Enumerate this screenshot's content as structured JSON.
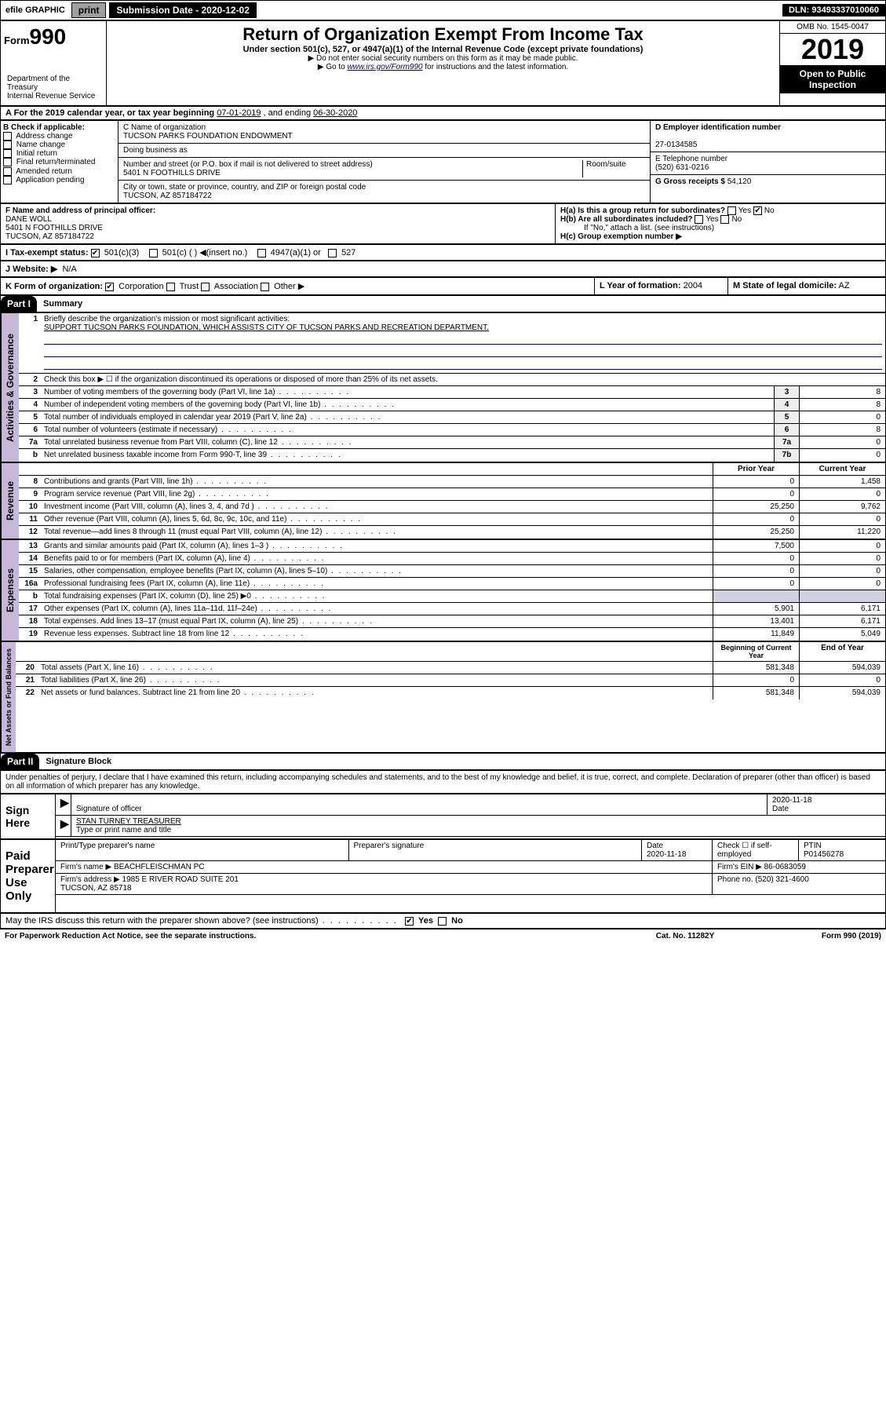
{
  "topbar": {
    "efile": "efile GRAPHIC",
    "print": "print",
    "sub_label": "Submission Date - 2020-12-02",
    "dln": "DLN: 93493337010060"
  },
  "header": {
    "form_small": "Form",
    "form_num": "990",
    "title": "Return of Organization Exempt From Income Tax",
    "sub": "Under section 501(c), 527, or 4947(a)(1) of the Internal Revenue Code (except private foundations)",
    "note1": "▶ Do not enter social security numbers on this form as it may be made public.",
    "note2_pre": "▶ Go to ",
    "note2_link": "www.irs.gov/Form990",
    "note2_post": " for instructions and the latest information.",
    "omb": "OMB No. 1545-0047",
    "year": "2019",
    "ribbon": "Open to Public Inspection",
    "dept": "Department of the Treasury\nInternal Revenue Service"
  },
  "a": {
    "text_pre": "A For the 2019 calendar year, or tax year beginning ",
    "begin": "07-01-2019",
    "mid": " , and ending ",
    "end": "06-30-2020"
  },
  "b": {
    "label": "B Check if applicable:",
    "items": [
      "Address change",
      "Name change",
      "Initial return",
      "Final return/terminated",
      "Amended return",
      "Application pending"
    ]
  },
  "c": {
    "name_label": "C Name of organization",
    "name": "TUCSON PARKS FOUNDATION ENDOWMENT",
    "dba_label": "Doing business as",
    "addr_label": "Number and street (or P.O. box if mail is not delivered to street address)",
    "room_label": "Room/suite",
    "addr": "5401 N FOOTHILLS DRIVE",
    "city_label": "City or town, state or province, country, and ZIP or foreign postal code",
    "city": "TUCSON, AZ  857184722"
  },
  "d": {
    "label": "D Employer identification number",
    "val": "27-0134585"
  },
  "e": {
    "label": "E Telephone number",
    "val": "(520) 631-0216"
  },
  "g": {
    "label": "G Gross receipts $",
    "val": "54,120"
  },
  "f": {
    "label": "F Name and address of principal officer:",
    "name": "DANE WOLL",
    "addr1": "5401 N FOOTHILLS DRIVE",
    "addr2": "TUCSON, AZ  857184722"
  },
  "h": {
    "a": "H(a)  Is this a group return for subordinates?",
    "b": "H(b)  Are all subordinates included?",
    "b_note": "If \"No,\" attach a list. (see instructions)",
    "c": "H(c)  Group exemption number ▶",
    "yes": "Yes",
    "no": "No"
  },
  "i": {
    "label": "I  Tax-exempt status:",
    "o1": "501(c)(3)",
    "o2": "501(c) (   ) ◀(insert no.)",
    "o3": "4947(a)(1) or",
    "o4": "527"
  },
  "j": {
    "label": "J  Website: ▶",
    "val": "N/A"
  },
  "k": {
    "label": "K Form of organization:",
    "o1": "Corporation",
    "o2": "Trust",
    "o3": "Association",
    "o4": "Other ▶"
  },
  "l": {
    "label": "L Year of formation:",
    "val": "2004"
  },
  "m": {
    "label": "M State of legal domicile:",
    "val": "AZ"
  },
  "part1": {
    "hdr": "Part I",
    "title": "Summary"
  },
  "summary": {
    "l1": "Briefly describe the organization's mission or most significant activities:",
    "l1v": "SUPPORT TUCSON PARKS FOUNDATION, WHICH ASSISTS CITY OF TUCSON PARKS AND RECREATION DEPARTMENT.",
    "l2": "Check this box ▶ ☐  if the organization discontinued its operations or disposed of more than 25% of its net assets.",
    "rows": [
      {
        "n": "3",
        "t": "Number of voting members of the governing body (Part VI, line 1a)",
        "box": "3",
        "v": "8"
      },
      {
        "n": "4",
        "t": "Number of independent voting members of the governing body (Part VI, line 1b)",
        "box": "4",
        "v": "8"
      },
      {
        "n": "5",
        "t": "Total number of individuals employed in calendar year 2019 (Part V, line 2a)",
        "box": "5",
        "v": "0"
      },
      {
        "n": "6",
        "t": "Total number of volunteers (estimate if necessary)",
        "box": "6",
        "v": "8"
      },
      {
        "n": "7a",
        "t": "Total unrelated business revenue from Part VIII, column (C), line 12",
        "box": "7a",
        "v": "0"
      },
      {
        "n": "b",
        "t": "Net unrelated business taxable income from Form 990-T, line 39",
        "box": "7b",
        "v": "0"
      }
    ],
    "col_prior": "Prior Year",
    "col_curr": "Current Year",
    "rev": [
      {
        "n": "8",
        "t": "Contributions and grants (Part VIII, line 1h)",
        "p": "0",
        "c": "1,458"
      },
      {
        "n": "9",
        "t": "Program service revenue (Part VIII, line 2g)",
        "p": "0",
        "c": "0"
      },
      {
        "n": "10",
        "t": "Investment income (Part VIII, column (A), lines 3, 4, and 7d )",
        "p": "25,250",
        "c": "9,762"
      },
      {
        "n": "11",
        "t": "Other revenue (Part VIII, column (A), lines 5, 6d, 8c, 9c, 10c, and 11e)",
        "p": "0",
        "c": "0"
      },
      {
        "n": "12",
        "t": "Total revenue—add lines 8 through 11 (must equal Part VIII, column (A), line 12)",
        "p": "25,250",
        "c": "11,220"
      }
    ],
    "exp": [
      {
        "n": "13",
        "t": "Grants and similar amounts paid (Part IX, column (A), lines 1–3 )",
        "p": "7,500",
        "c": "0"
      },
      {
        "n": "14",
        "t": "Benefits paid to or for members (Part IX, column (A), line 4)",
        "p": "0",
        "c": "0"
      },
      {
        "n": "15",
        "t": "Salaries, other compensation, employee benefits (Part IX, column (A), lines 5–10)",
        "p": "0",
        "c": "0"
      },
      {
        "n": "16a",
        "t": "Professional fundraising fees (Part IX, column (A), line 11e)",
        "p": "0",
        "c": "0"
      },
      {
        "n": "b",
        "t": "Total fundraising expenses (Part IX, column (D), line 25) ▶0",
        "p": "",
        "c": "",
        "shade": true
      },
      {
        "n": "17",
        "t": "Other expenses (Part IX, column (A), lines 11a–11d, 11f–24e)",
        "p": "5,901",
        "c": "6,171"
      },
      {
        "n": "18",
        "t": "Total expenses. Add lines 13–17 (must equal Part IX, column (A), line 25)",
        "p": "13,401",
        "c": "6,171"
      },
      {
        "n": "19",
        "t": "Revenue less expenses. Subtract line 18 from line 12",
        "p": "11,849",
        "c": "5,049"
      }
    ],
    "col_begin": "Beginning of Current Year",
    "col_end": "End of Year",
    "net": [
      {
        "n": "20",
        "t": "Total assets (Part X, line 16)",
        "p": "581,348",
        "c": "594,039"
      },
      {
        "n": "21",
        "t": "Total liabilities (Part X, line 26)",
        "p": "0",
        "c": "0"
      },
      {
        "n": "22",
        "t": "Net assets or fund balances. Subtract line 21 from line 20",
        "p": "581,348",
        "c": "594,039"
      }
    ],
    "vlab1": "Activities & Governance",
    "vlab2": "Revenue",
    "vlab3": "Expenses",
    "vlab4": "Net Assets or Fund Balances"
  },
  "part2": {
    "hdr": "Part II",
    "title": "Signature Block"
  },
  "perjury": "Under penalties of perjury, I declare that I have examined this return, including accompanying schedules and statements, and to the best of my knowledge and belief, it is true, correct, and complete. Declaration of preparer (other than officer) is based on all information of which preparer has any knowledge.",
  "sign": {
    "here": "Sign Here",
    "sig_label": "Signature of officer",
    "date_label": "Date",
    "date": "2020-11-18",
    "name": "STAN TURNEY TREASURER",
    "name_label": "Type or print name and title"
  },
  "paid": {
    "left": "Paid Preparer Use Only",
    "h1": "Print/Type preparer's name",
    "h2": "Preparer's signature",
    "h3": "Date",
    "h4": "Check ☐ if self-employed",
    "h5": "PTIN",
    "date": "2020-11-18",
    "ptin": "P01456278",
    "firm_label": "Firm's name    ▶",
    "firm": "BEACHFLEISCHMAN PC",
    "ein_label": "Firm's EIN ▶",
    "ein": "86-0683059",
    "addr_label": "Firm's address ▶",
    "addr": "1985 E RIVER ROAD SUITE 201\nTUCSON, AZ  85718",
    "phone_label": "Phone no.",
    "phone": "(520) 321-4600"
  },
  "discuss": {
    "txt": "May the IRS discuss this return with the preparer shown above? (see instructions)",
    "yes": "Yes",
    "no": "No"
  },
  "footer": {
    "l": "For Paperwork Reduction Act Notice, see the separate instructions.",
    "m": "Cat. No. 11282Y",
    "r": "Form 990 (2019)"
  }
}
